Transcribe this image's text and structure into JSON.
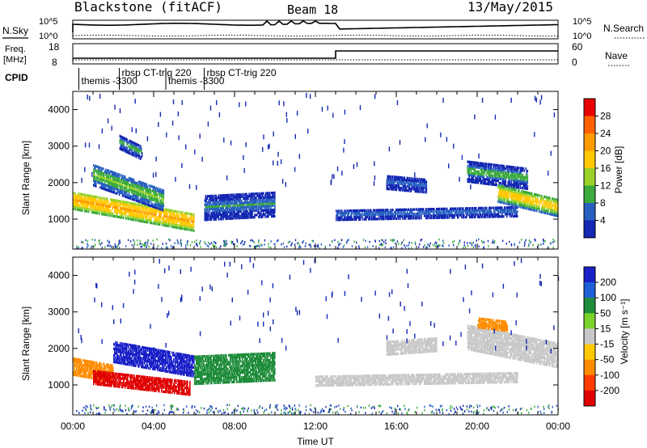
{
  "header": {
    "station": "Blackstone (fitACF)",
    "beam": "Beam 18",
    "date": "13/May/2015"
  },
  "panels": {
    "nsky_label": "N.Sky",
    "nsky_ticks": [
      "10^5",
      "10^0"
    ],
    "nsearch_label": "N.Search",
    "nsearch_ticks": [
      "10^5",
      "10^0"
    ],
    "freq_label": "Freq.",
    "freq_unit": "[MHz]",
    "freq_ticks": [
      "18",
      "8"
    ],
    "nave_label": "Nave",
    "nave_ticks": [
      "60",
      "0"
    ],
    "cpid_label": "CPID",
    "cpid_segments": [
      {
        "start": 0.3,
        "end": 2.3,
        "label": "themis -3300",
        "row": 1
      },
      {
        "start": 2.3,
        "end": 4.6,
        "label": "rbsp CT-trig 220",
        "row": 0
      },
      {
        "start": 4.6,
        "end": 6.5,
        "label": "themis -3300",
        "row": 1
      },
      {
        "start": 6.5,
        "end": 9.0,
        "label": "rbsp CT-trig 220",
        "row": 0
      }
    ]
  },
  "colorbars": {
    "power": {
      "title": "Power [dB]",
      "ticks": [
        "28",
        "24",
        "20",
        "16",
        "12",
        "8",
        "4"
      ],
      "colors": [
        "#e80000",
        "#ff6000",
        "#ff9a00",
        "#ffc800",
        "#9ad22a",
        "#3caa3c",
        "#2860c0",
        "#1428b4"
      ]
    },
    "velocity": {
      "title": "Velocity [m s⁻¹]",
      "ticks": [
        "200",
        "100",
        "50",
        "15",
        "-15",
        "-50",
        "-100",
        "-200"
      ],
      "colors": [
        "#1a20c8",
        "#1e60d8",
        "#1e8c3a",
        "#7ad22a",
        "#c8c8c8",
        "#ffc800",
        "#ff8c00",
        "#ff3c00",
        "#e00000"
      ]
    }
  },
  "chart_data": [
    {
      "type": "heatmap",
      "name": "Power",
      "ylabel": "Slant Range [km]",
      "ylim": [
        180,
        4500
      ],
      "yticks": [
        1000,
        2000,
        3000,
        4000
      ],
      "xlim": [
        0,
        24
      ],
      "echo_bands": [
        {
          "t0": 0.0,
          "t1": 6.0,
          "r_center_start": 1500,
          "r_center_end": 900,
          "width": 500,
          "power_db": 24
        },
        {
          "t0": 1.0,
          "t1": 4.5,
          "r_center_start": 2200,
          "r_center_end": 1500,
          "width": 600,
          "power_db": 14
        },
        {
          "t0": 2.3,
          "t1": 3.4,
          "r_center_start": 3100,
          "r_center_end": 2800,
          "width": 400,
          "power_db": 10
        },
        {
          "t0": 6.5,
          "t1": 10.0,
          "r_center_start": 1300,
          "r_center_end": 1400,
          "width": 700,
          "power_db": 8
        },
        {
          "t0": 13.0,
          "t1": 22.0,
          "r_center_start": 1100,
          "r_center_end": 1200,
          "width": 300,
          "power_db": 6
        },
        {
          "t0": 15.5,
          "t1": 17.5,
          "r_center_start": 2000,
          "r_center_end": 1900,
          "width": 400,
          "power_db": 8
        },
        {
          "t0": 19.5,
          "t1": 22.5,
          "r_center_start": 2300,
          "r_center_end": 2100,
          "width": 600,
          "power_db": 10
        },
        {
          "t0": 21.0,
          "t1": 24.0,
          "r_center_start": 1700,
          "r_center_end": 1300,
          "width": 500,
          "power_db": 20
        }
      ]
    },
    {
      "type": "heatmap",
      "name": "Velocity",
      "ylabel": "Slant Range [km]",
      "xlabel": "Time UT",
      "ylim": [
        180,
        4500
      ],
      "yticks": [
        1000,
        2000,
        3000,
        4000
      ],
      "xlim": [
        0,
        24
      ],
      "xticks": [
        "00:00",
        "04:00",
        "08:00",
        "12:00",
        "16:00",
        "20:00",
        "00:00"
      ],
      "echo_bands": [
        {
          "t0": 0.0,
          "t1": 2.0,
          "r_center_start": 1500,
          "r_center_end": 1300,
          "width": 500,
          "velocity": -60
        },
        {
          "t0": 1.0,
          "t1": 5.8,
          "r_center_start": 1200,
          "r_center_end": 900,
          "width": 400,
          "velocity": -220
        },
        {
          "t0": 2.0,
          "t1": 6.0,
          "r_center_start": 1900,
          "r_center_end": 1500,
          "width": 600,
          "velocity": 200
        },
        {
          "t0": 6.0,
          "t1": 10.0,
          "r_center_start": 1400,
          "r_center_end": 1500,
          "width": 800,
          "velocity": 60
        },
        {
          "t0": 12.0,
          "t1": 22.0,
          "r_center_start": 1100,
          "r_center_end": 1200,
          "width": 300,
          "velocity": 0
        },
        {
          "t0": 15.5,
          "t1": 18.0,
          "r_center_start": 2000,
          "r_center_end": 2100,
          "width": 400,
          "velocity": 0
        },
        {
          "t0": 19.5,
          "t1": 24.0,
          "r_center_start": 2300,
          "r_center_end": 1800,
          "width": 700,
          "velocity": 0
        },
        {
          "t0": 20.0,
          "t1": 21.5,
          "r_center_start": 2700,
          "r_center_end": 2600,
          "width": 300,
          "velocity": -80
        }
      ]
    }
  ]
}
